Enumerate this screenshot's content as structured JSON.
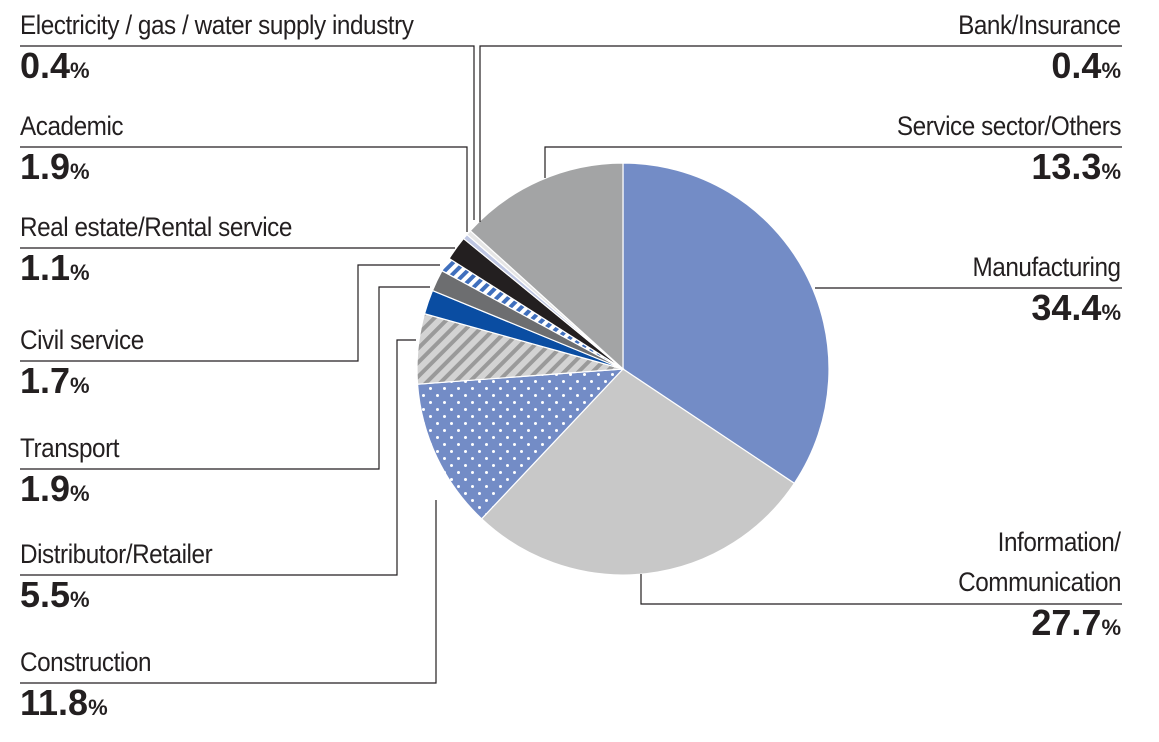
{
  "chart_data": {
    "type": "pie",
    "start_angle_deg": 0,
    "direction": "clockwise",
    "unit": "%",
    "slices": [
      {
        "label": "Manufacturing",
        "value": 34.4,
        "value_label": "34.4",
        "color": "#738cc6",
        "pattern": "solid"
      },
      {
        "label": "Information/ Communication",
        "label_lines": [
          "Information/",
          "Communication"
        ],
        "value": 27.7,
        "value_label": "27.7",
        "color": "#c8c8c8",
        "pattern": "solid"
      },
      {
        "label": "Construction",
        "value": 11.8,
        "value_label": "11.8",
        "color": "#738cc6",
        "pattern": "dots"
      },
      {
        "label": "Distributor/Retailer",
        "value": 5.5,
        "value_label": "5.5",
        "color": "#a7a7a7",
        "pattern": "diagonal-stripes"
      },
      {
        "label": "Transport",
        "value": 1.9,
        "value_label": "1.9",
        "color": "#0a4da2",
        "pattern": "solid"
      },
      {
        "label": "Civil service",
        "value": 1.7,
        "value_label": "1.7",
        "color": "#6d6e70",
        "pattern": "solid"
      },
      {
        "label": "Real estate/Rental service",
        "value": 1.1,
        "value_label": "1.1",
        "color": "#4a78c0",
        "pattern": "blue-stripes"
      },
      {
        "label": "Academic",
        "value": 1.9,
        "value_label": "1.9",
        "color": "#231f20",
        "pattern": "solid"
      },
      {
        "label": "Electricity / gas / water supply industry",
        "value": 0.4,
        "value_label": "0.4",
        "color": "#bfc7e3",
        "pattern": "solid"
      },
      {
        "label": "Bank/Insurance",
        "value": 0.4,
        "value_label": "0.4",
        "color": "#e6e6e6",
        "pattern": "solid"
      },
      {
        "label": "Service sector/Others",
        "value": 13.3,
        "value_label": "13.3",
        "color": "#a3a4a5",
        "pattern": "solid"
      }
    ]
  }
}
